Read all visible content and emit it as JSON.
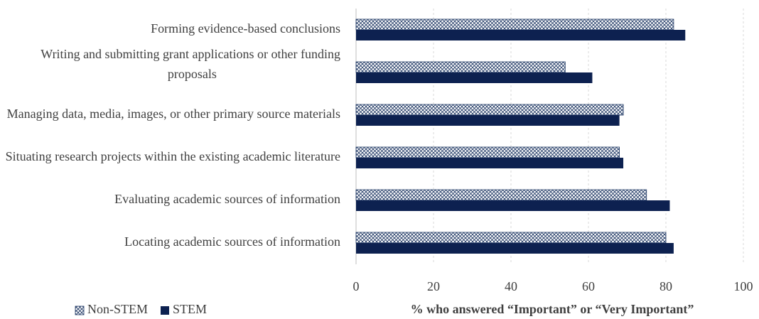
{
  "chart_data": {
    "type": "bar",
    "orientation": "horizontal",
    "categories": [
      "Forming evidence-based conclusions",
      "Writing and submitting grant applications or other funding proposals",
      "Managing data, media, images, or other primary source materials",
      "Situating research projects within the existing academic literature",
      "Evaluating academic sources of information",
      "Locating academic sources of information"
    ],
    "series": [
      {
        "name": "Non-STEM",
        "color": "#1f3864",
        "hatch": true,
        "values": [
          82,
          54,
          69,
          68,
          75,
          80
        ]
      },
      {
        "name": "STEM",
        "color": "#0d2150",
        "hatch": false,
        "values": [
          85,
          61,
          68,
          69,
          81,
          82
        ]
      }
    ],
    "xlabel": "% who answered “Important” or “Very Important”",
    "xlim": [
      0,
      100
    ],
    "xticks": [
      0,
      20,
      40,
      60,
      80,
      100
    ],
    "grid": true,
    "legend": "bottom-left"
  }
}
